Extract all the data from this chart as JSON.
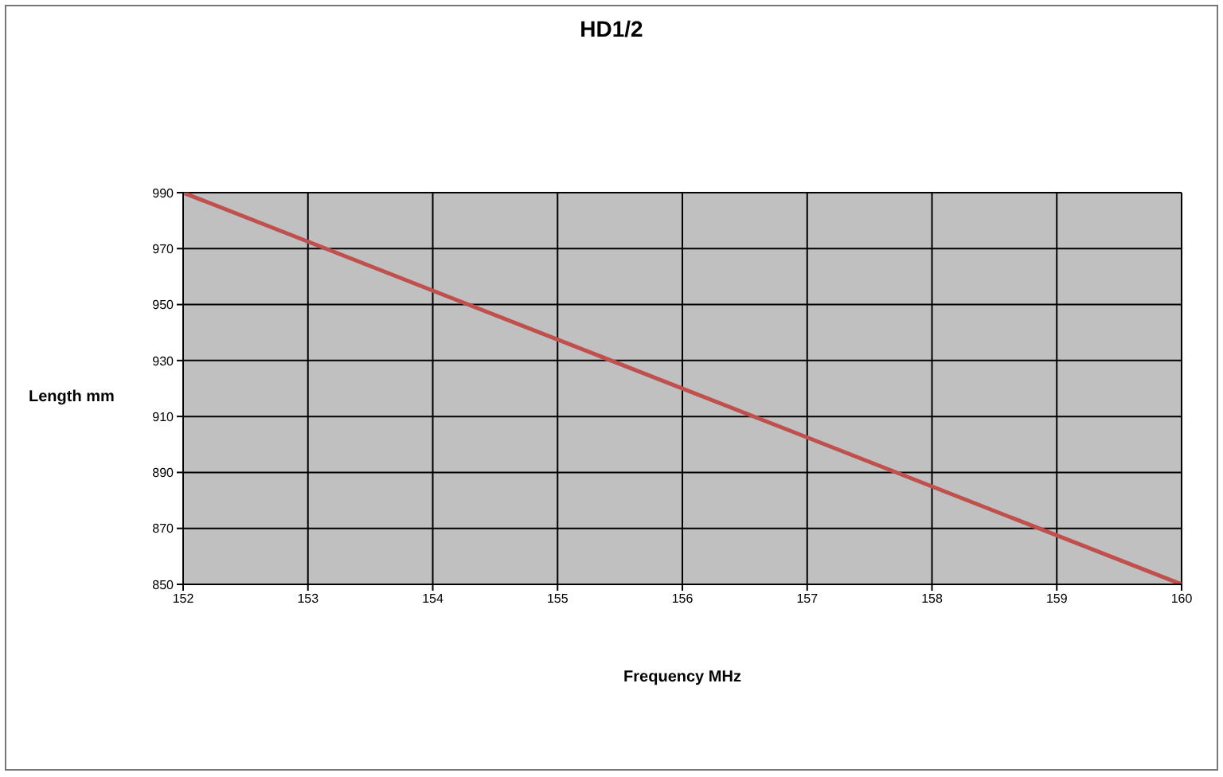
{
  "chart_data": {
    "type": "line",
    "title": "HD1/2",
    "xlabel": "Frequency MHz",
    "ylabel": "Length mm",
    "x": [
      152,
      160
    ],
    "series": [
      {
        "color": "#c0504d",
        "values": [
          990,
          850
        ]
      }
    ],
    "xlim": [
      152,
      160
    ],
    "xticks": [
      152,
      153,
      154,
      155,
      156,
      157,
      158,
      159,
      160
    ],
    "ylim": [
      850,
      990
    ],
    "yticks": [
      850,
      870,
      890,
      910,
      930,
      950,
      970,
      990
    ],
    "grid": true,
    "legend": false,
    "marker": "none",
    "line_style": "solid"
  }
}
